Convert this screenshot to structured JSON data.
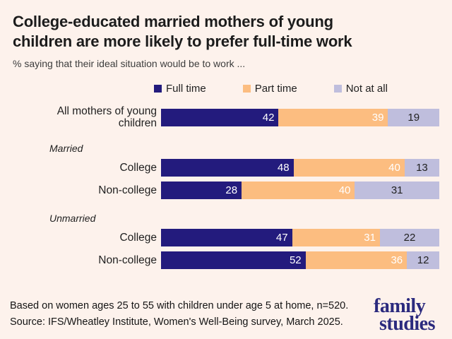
{
  "page": {
    "background": "#fdf2ec"
  },
  "header": {
    "title_line1": "College-educated married mothers of young",
    "title_line2": "children are more likely to prefer full-time work",
    "subtitle": "% saying that their ideal situation would be to work ..."
  },
  "legend": [
    {
      "label": "Full time",
      "color": "#231b7d"
    },
    {
      "label": "Part time",
      "color": "#fcbd80"
    },
    {
      "label": "Not at all",
      "color": "#bfbedd"
    }
  ],
  "chart_data": {
    "type": "bar",
    "orientation": "horizontal",
    "stacked": true,
    "title": "College-educated married mothers of young children are more likely to prefer full-time work",
    "subtitle": "% saying that their ideal situation would be to work ...",
    "series_names": [
      "Full time",
      "Part time",
      "Not at all"
    ],
    "colors": [
      "#231b7d",
      "#fcbd80",
      "#bfbedd"
    ],
    "value_label_colors": [
      "#ffffff",
      "#ffffff",
      "#222222"
    ],
    "xlim": [
      0,
      100
    ],
    "legend_position": "top",
    "groups": [
      {
        "section": "",
        "rows": [
          {
            "label": "All mothers of young children",
            "values": [
              42,
              39,
              19
            ]
          }
        ]
      },
      {
        "section": "Married",
        "rows": [
          {
            "label": "College",
            "values": [
              48,
              40,
              13
            ]
          },
          {
            "label": "Non-college",
            "values": [
              28,
              40,
              31
            ]
          }
        ]
      },
      {
        "section": "Unmarried",
        "rows": [
          {
            "label": "College",
            "values": [
              47,
              31,
              22
            ]
          },
          {
            "label": "Non-college",
            "values": [
              52,
              36,
              12
            ]
          }
        ]
      }
    ]
  },
  "footer": {
    "note": "Based on women ages 25 to 55 with children under age 5 at home, n=520.",
    "source": "Source: IFS/Wheatley Institute, Women's Well-Being survey, March 2025.",
    "logo_line1": "family",
    "logo_line2": "studies"
  }
}
